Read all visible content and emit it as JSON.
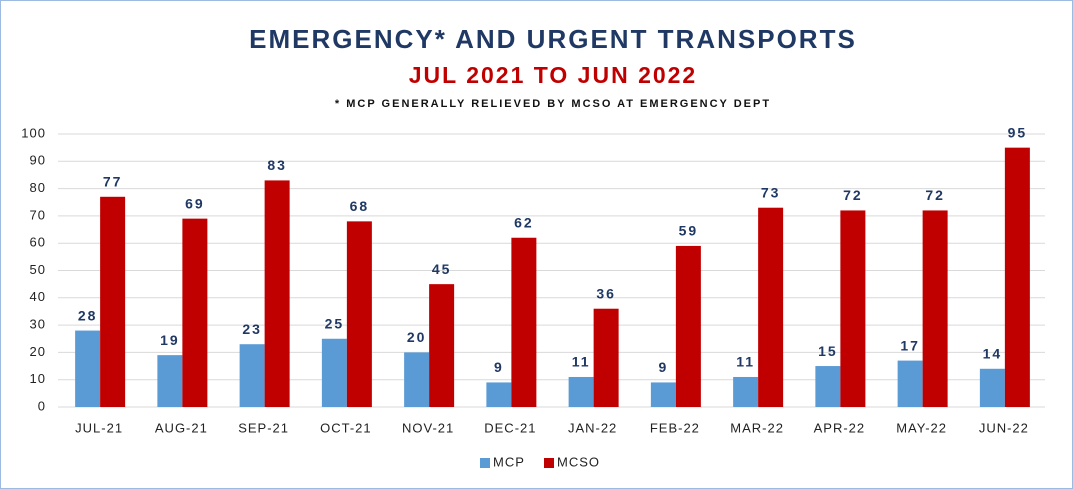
{
  "chart_data": {
    "type": "bar",
    "title": "EMERGENCY* AND URGENT TRANSPORTS",
    "subtitle": "JUL 2021 TO JUN 2022",
    "note": "* MCP GENERALLY RELIEVED BY MCSO AT EMERGENCY DEPT",
    "categories": [
      "JUL-21",
      "AUG-21",
      "SEP-21",
      "OCT-21",
      "NOV-21",
      "DEC-21",
      "JAN-22",
      "FEB-22",
      "MAR-22",
      "APR-22",
      "MAY-22",
      "JUN-22"
    ],
    "series": [
      {
        "name": "MCP",
        "color": "#5b9bd5",
        "values": [
          28,
          19,
          23,
          25,
          20,
          9,
          11,
          9,
          11,
          15,
          17,
          14
        ]
      },
      {
        "name": "MCSO",
        "color": "#c00000",
        "values": [
          77,
          69,
          83,
          68,
          45,
          62,
          36,
          59,
          73,
          72,
          72,
          95
        ]
      }
    ],
    "ylim": [
      0,
      100
    ],
    "yticks": [
      0,
      10,
      20,
      30,
      40,
      50,
      60,
      70,
      80,
      90,
      100
    ],
    "grid": true,
    "legend": "bottom"
  }
}
